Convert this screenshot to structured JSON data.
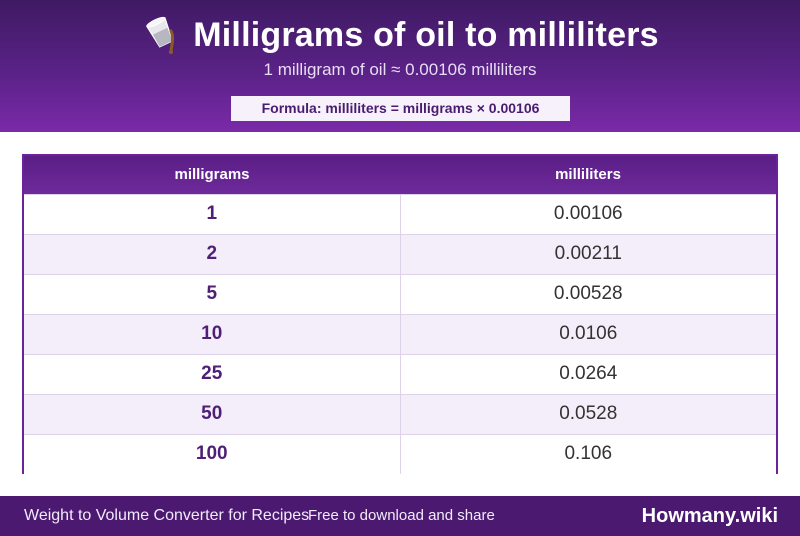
{
  "header": {
    "title": "Milligrams of oil to milliliters",
    "subtitle": "1 milligram of oil ≈ 0.00106 milliliters",
    "formula": "Formula: milliliters = milligrams × 0.00106",
    "icon": "pouring-glass-icon"
  },
  "table": {
    "headers": [
      "milligrams",
      "milliliters"
    ],
    "rows": [
      {
        "mg": "1",
        "ml": "0.00106"
      },
      {
        "mg": "2",
        "ml": "0.00211"
      },
      {
        "mg": "5",
        "ml": "0.00528"
      },
      {
        "mg": "10",
        "ml": "0.0106"
      },
      {
        "mg": "25",
        "ml": "0.0264"
      },
      {
        "mg": "50",
        "ml": "0.0528"
      },
      {
        "mg": "100",
        "ml": "0.106"
      }
    ]
  },
  "footer": {
    "left": "Weight to Volume Converter for Recipes",
    "mid": "Free to download and share",
    "brand": "Howmany.wiki"
  },
  "colors": {
    "header_dark": "#3f1a63",
    "header_light": "#7a2aa8",
    "accent": "#4f1f78",
    "footer": "#4b1a70"
  }
}
